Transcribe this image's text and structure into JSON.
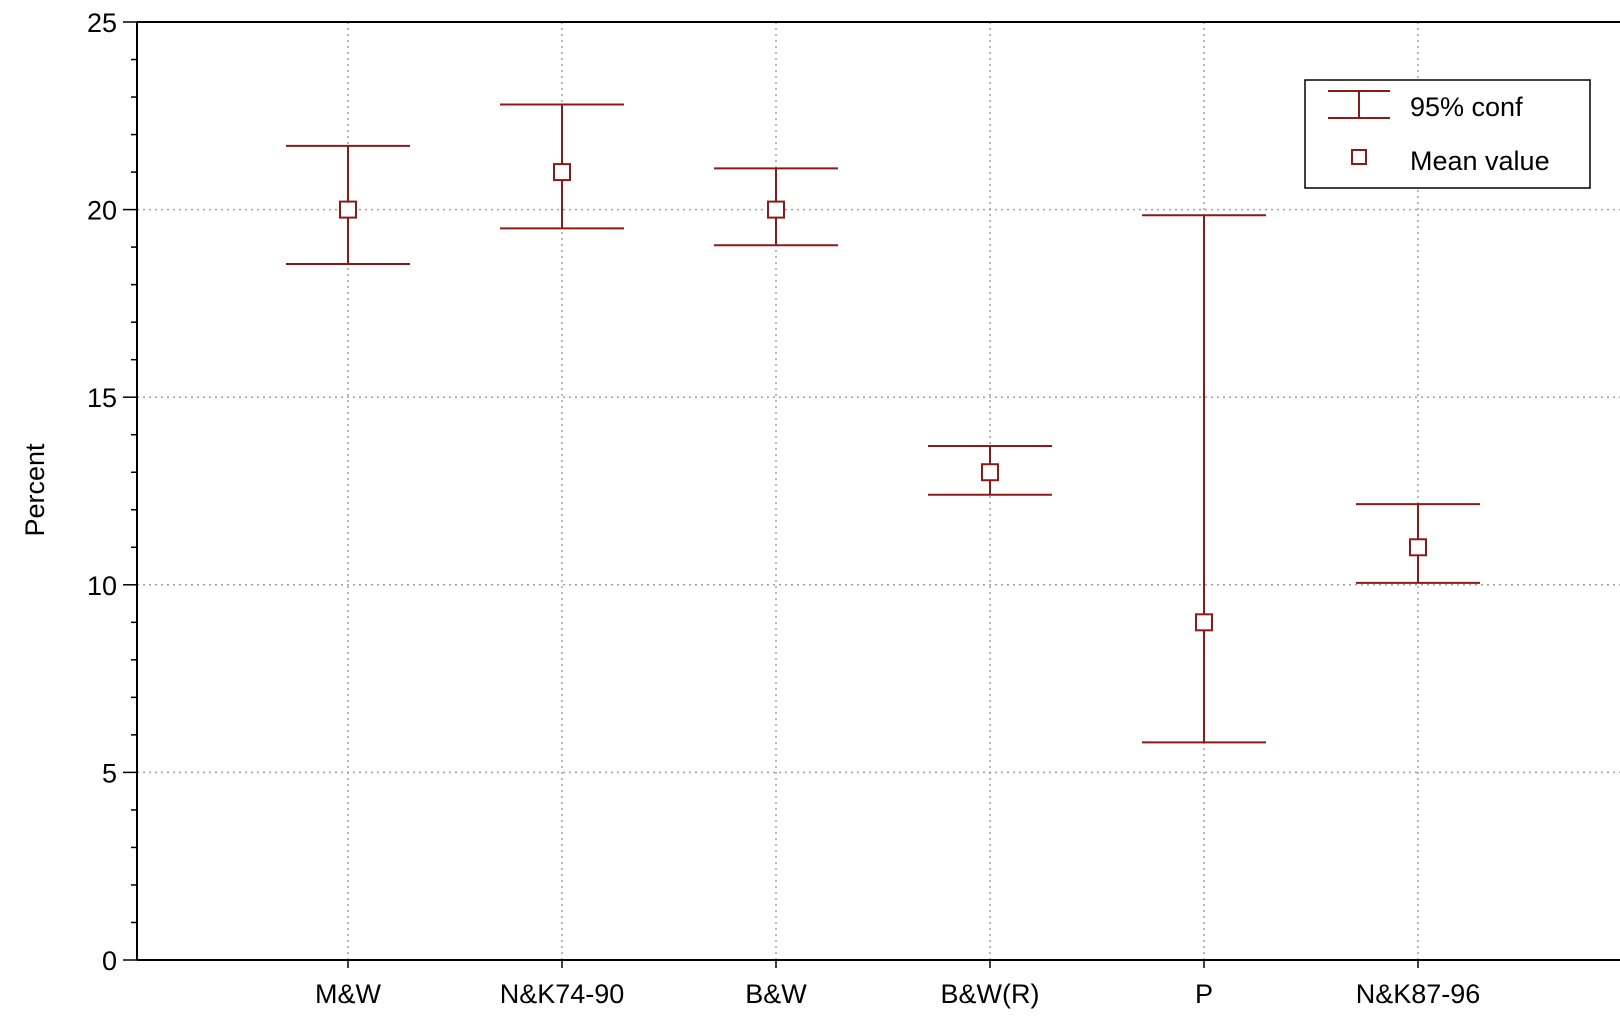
{
  "chart_data": {
    "type": "errorbar",
    "categories": [
      "M&W",
      "N&K74-90",
      "B&W",
      "B&W(R)",
      "P",
      "N&K87-96"
    ],
    "mean": [
      20.0,
      21.0,
      20.0,
      13.0,
      9.0,
      11.0
    ],
    "ci_low": [
      18.55,
      19.5,
      19.05,
      12.4,
      5.8,
      10.05
    ],
    "ci_high": [
      21.7,
      22.8,
      21.1,
      13.7,
      19.85,
      12.15
    ],
    "ylabel": "Percent",
    "xlabel": "",
    "ylim": [
      0,
      25
    ],
    "yticks": [
      "0",
      "5",
      "10",
      "15",
      "20",
      "25"
    ],
    "grid": true,
    "legend": {
      "placement": "top-right",
      "entries": [
        {
          "label": "95% conf",
          "symbol": "errorbar"
        },
        {
          "label": "Mean value",
          "symbol": "square"
        }
      ]
    },
    "color": "#8b1a1a"
  }
}
